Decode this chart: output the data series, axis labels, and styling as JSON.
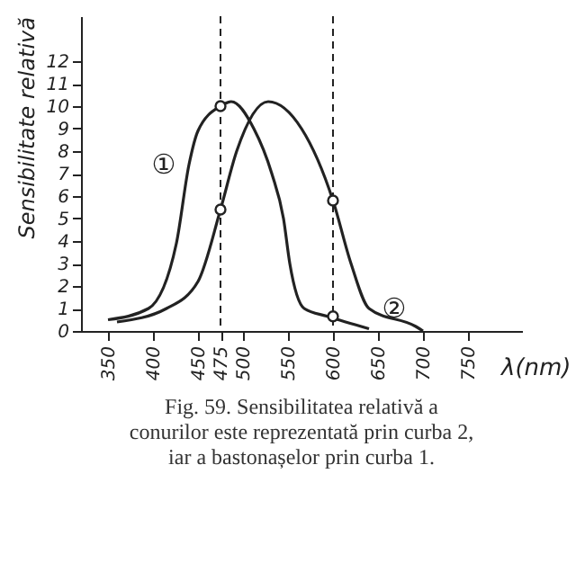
{
  "chart_data": {
    "type": "line",
    "xlabel": "λ(nm)",
    "ylabel": "Sensibilitate relativă",
    "xlim": [
      320,
      810
    ],
    "ylim": [
      0,
      14
    ],
    "xticks": [
      350,
      400,
      450,
      475,
      500,
      550,
      600,
      650,
      700,
      750
    ],
    "yticks": [
      0,
      1,
      2,
      3,
      4,
      5,
      6,
      7,
      8,
      9,
      10,
      11,
      12
    ],
    "grid": false,
    "marker": "none",
    "line_style": "solid",
    "series": [
      {
        "name": "①",
        "color": "#222222",
        "x": [
          350,
          395,
          426,
          440,
          450,
          475,
          487,
          512,
          532,
          545,
          552,
          568,
          594,
          640
        ],
        "values": [
          0.5,
          1,
          3.9,
          7.4,
          8.9,
          10,
          10.2,
          9,
          7,
          5,
          3,
          1,
          0.65,
          0.1
        ]
      },
      {
        "name": "②",
        "color": "#222222",
        "x": [
          360,
          415,
          450,
          475,
          493,
          528,
          565,
          600,
          620,
          640,
          692,
          700
        ],
        "values": [
          0.4,
          1,
          2.2,
          5.4,
          8,
          10.2,
          9,
          5.8,
          3,
          1,
          0.2,
          0
        ]
      },
      {
        "type": "scatter",
        "marker": "circle",
        "color": "#222222",
        "x": [
          475,
          475,
          600,
          600
        ],
        "values": [
          10,
          5.4,
          5.8,
          0.65
        ]
      }
    ],
    "ref_lines": [
      {
        "axis": "x",
        "value": 475,
        "line_style": "dashed",
        "color": "#222222"
      },
      {
        "axis": "x",
        "value": 600,
        "line_style": "dashed",
        "color": "#222222"
      }
    ],
    "annotations": [
      "Fig. 59. Sensibilitatea relativă a conurilor este reprezentată prin curba 2, iar a bastonașelor prin curba 1."
    ]
  }
}
